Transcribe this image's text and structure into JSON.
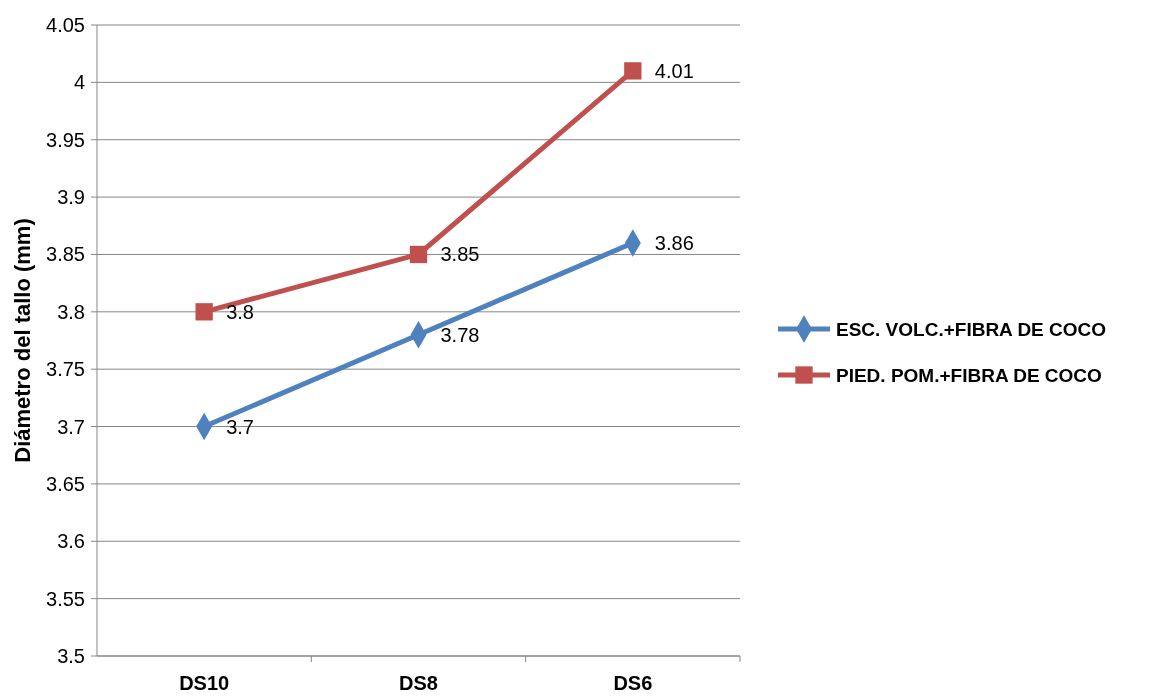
{
  "chart_data": {
    "type": "line",
    "ylabel": "Diámetro del tallo (mm)",
    "categories": [
      "DS10",
      "DS8",
      "DS6"
    ],
    "series": [
      {
        "name": "ESC. VOLC.+FIBRA DE COCO",
        "color": "#4f81bd",
        "marker": "diamond",
        "values": [
          3.7,
          3.78,
          3.86
        ]
      },
      {
        "name": "PIED. POM.+FIBRA DE COCO",
        "color": "#c0504d",
        "marker": "square",
        "values": [
          3.8,
          3.85,
          4.01
        ]
      }
    ],
    "ylim": [
      3.5,
      4.05
    ],
    "yticks": [
      3.5,
      3.55,
      3.6,
      3.65,
      3.7,
      3.75,
      3.8,
      3.85,
      3.9,
      3.95,
      4,
      4.05
    ],
    "grid": "y",
    "legend": "right",
    "data_labels": true
  }
}
